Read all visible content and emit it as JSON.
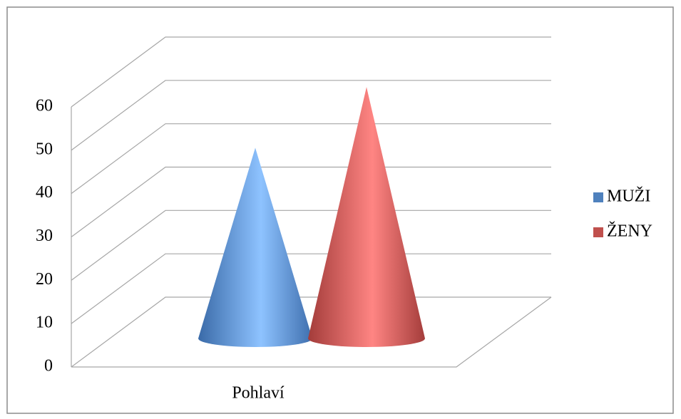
{
  "chart_data": {
    "type": "cone",
    "categories": [
      "Pohlaví"
    ],
    "series": [
      {
        "name": "MUŽI",
        "color": "#4f81bd",
        "values": [
          44
        ]
      },
      {
        "name": "ŽENY",
        "color": "#c0504d",
        "values": [
          58
        ]
      }
    ],
    "ylim": [
      0,
      60
    ],
    "yticks": [
      0,
      10,
      20,
      30,
      40,
      50,
      60
    ],
    "grid": true,
    "legend": "right"
  }
}
